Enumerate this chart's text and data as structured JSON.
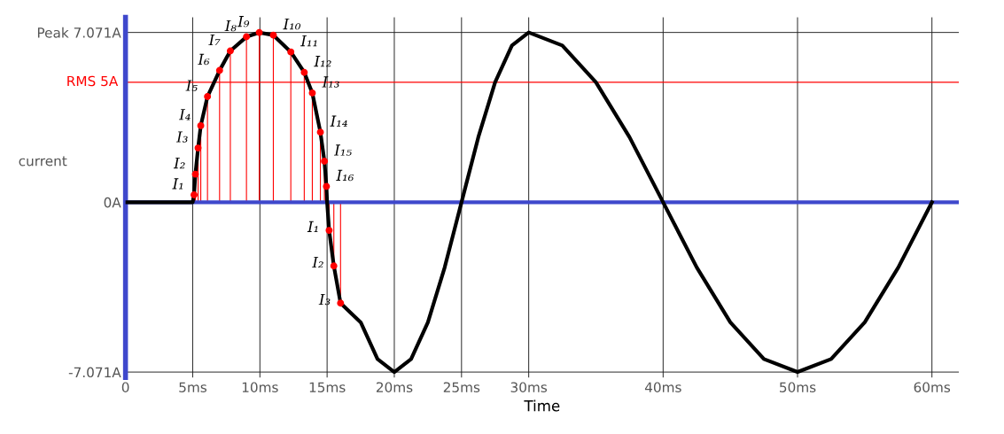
{
  "chart_data": {
    "type": "line",
    "xlabel": "Time",
    "ylabel": "current",
    "xlim": [
      0,
      62
    ],
    "ylim": [
      -7.3,
      7.7
    ],
    "xticks": [
      {
        "value": 0,
        "label": "0"
      },
      {
        "value": 5,
        "label": "5ms"
      },
      {
        "value": 10,
        "label": "10ms"
      },
      {
        "value": 15,
        "label": "15ms"
      },
      {
        "value": 20,
        "label": "20ms"
      },
      {
        "value": 25,
        "label": "25ms"
      },
      {
        "value": 30,
        "label": "30ms"
      },
      {
        "value": 40,
        "label": "40ms"
      },
      {
        "value": 50,
        "label": "50ms"
      },
      {
        "value": 60,
        "label": "60ms"
      }
    ],
    "yticks": [
      {
        "value": -7.071,
        "label": "-7.071A"
      },
      {
        "value": 0,
        "label": "0A"
      },
      {
        "value": 7.071,
        "label": "Peak 7.071A"
      }
    ],
    "grid": true,
    "ref_lines": [
      {
        "axis": "y",
        "value": 5,
        "label": "RMS 5A",
        "color": "#ff0000"
      },
      {
        "axis": "y",
        "value": 0,
        "color": "#3f48cc"
      }
    ],
    "series": [
      {
        "color": "#000000",
        "marker": "none",
        "x": [
          0,
          5,
          5.1,
          5.2,
          5.4,
          5.6,
          6.1,
          7.0,
          7.8,
          9.0,
          9.95,
          11.0,
          12.3,
          13.3,
          13.9,
          14.5,
          14.8,
          14.95,
          15,
          15.15,
          15.5,
          16.0,
          17.5,
          18.75,
          20,
          21.25,
          22.5,
          23.75,
          25,
          26.25,
          27.5,
          28.75,
          30,
          32.5,
          35,
          37.5,
          40,
          42.5,
          45,
          47.5,
          50,
          52.5,
          55,
          57.5,
          60
        ],
        "values": [
          0,
          0,
          0.31,
          1.17,
          2.26,
          3.19,
          4.4,
          5.49,
          6.3,
          6.89,
          7.07,
          6.96,
          6.26,
          5.41,
          4.55,
          2.92,
          1.71,
          0.66,
          0,
          -1.17,
          -2.65,
          -4.2,
          -5,
          -6.53,
          -7.07,
          -6.53,
          -5,
          -2.71,
          0,
          2.71,
          5,
          6.53,
          7.07,
          6.53,
          5,
          2.71,
          0,
          -2.71,
          -5,
          -6.53,
          -7.07,
          -6.53,
          -5,
          -2.71,
          0
        ]
      },
      {
        "type": "lollipop",
        "color": "#ff0000",
        "marker": "circle",
        "x": [
          5.1,
          5.2,
          5.4,
          5.6,
          6.1,
          7.0,
          7.8,
          9.0,
          9.95,
          11.0,
          12.3,
          13.3,
          13.9,
          14.5,
          14.8,
          14.95
        ],
        "values": [
          0.31,
          1.17,
          2.26,
          3.19,
          4.4,
          5.49,
          6.3,
          6.89,
          7.07,
          6.96,
          6.26,
          5.41,
          4.55,
          2.92,
          1.71,
          0.66
        ],
        "value_labels": [
          "I₁",
          "I₂",
          "I₃",
          "I₄",
          "I₅",
          "I₆",
          "I₇",
          "I₈",
          "I₉",
          "I₁₀",
          "I₁₁",
          "I₁₂",
          "I₁₃",
          "I₁₄",
          "I₁₅",
          "I₁₆"
        ]
      },
      {
        "type": "lollipop",
        "color": "#ff0000",
        "marker": "circle",
        "x": [
          15.15,
          15.5,
          16.0
        ],
        "values": [
          -1.17,
          -2.65,
          -4.2
        ],
        "value_labels": [
          "I₁",
          "I₂",
          "I₃"
        ]
      }
    ]
  }
}
